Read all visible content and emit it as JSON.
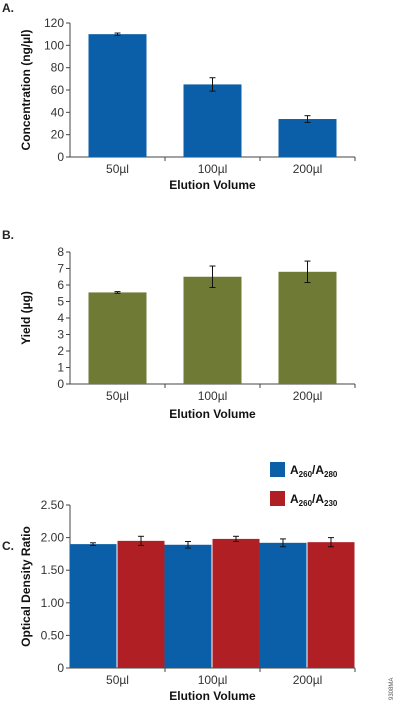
{
  "catalog_number": "9308MA",
  "colors": {
    "blue": "#0b5fa8",
    "olive": "#6f7a35",
    "red": "#b01f24"
  },
  "chart_data": [
    {
      "panel": "A.",
      "type": "bar",
      "categories": [
        "50µl",
        "100µl",
        "200µl"
      ],
      "series": [
        {
          "values": [
            110,
            65,
            34
          ],
          "errors": [
            1,
            6,
            3
          ],
          "color": "#0b5fa8"
        }
      ],
      "xlabel": "Elution Volume",
      "ylabel": "Concentration (ng/µl)",
      "ylim": [
        0,
        120
      ],
      "yticks": [
        "0",
        "20",
        "40",
        "60",
        "80",
        "100",
        "120"
      ],
      "grid": false
    },
    {
      "panel": "B.",
      "type": "bar",
      "categories": [
        "50µl",
        "100µl",
        "200µl"
      ],
      "series": [
        {
          "values": [
            5.55,
            6.5,
            6.8
          ],
          "errors": [
            0.05,
            0.65,
            0.65
          ],
          "color": "#6f7a35"
        }
      ],
      "xlabel": "Elution Volume",
      "ylabel": "Yield (µg)",
      "ylim": [
        0,
        8
      ],
      "yticks": [
        "0",
        "1",
        "2",
        "3",
        "4",
        "5",
        "6",
        "7",
        "8"
      ],
      "grid": false
    },
    {
      "panel": "C.",
      "type": "bar",
      "categories": [
        "50µl",
        "100µl",
        "200µl"
      ],
      "series": [
        {
          "name": "A260/A280",
          "label_main": [
            "A",
            "/A"
          ],
          "label_sub": [
            "260",
            "280"
          ],
          "values": [
            1.9,
            1.89,
            1.92
          ],
          "errors": [
            0.02,
            0.05,
            0.06
          ],
          "color": "#0b5fa8"
        },
        {
          "name": "A260/A230",
          "label_main": [
            "A",
            "/A"
          ],
          "label_sub": [
            "260",
            "230"
          ],
          "values": [
            1.95,
            1.98,
            1.93
          ],
          "errors": [
            0.07,
            0.04,
            0.07
          ],
          "color": "#b01f24"
        }
      ],
      "xlabel": "Elution Volume",
      "ylabel": "Optical Density Ratio",
      "ylim": [
        0,
        2.5
      ],
      "yticks": [
        "0",
        "0.50",
        "1.00",
        "1.50",
        "2.00",
        "2.50"
      ],
      "legend": "top-right",
      "grid": false
    }
  ]
}
